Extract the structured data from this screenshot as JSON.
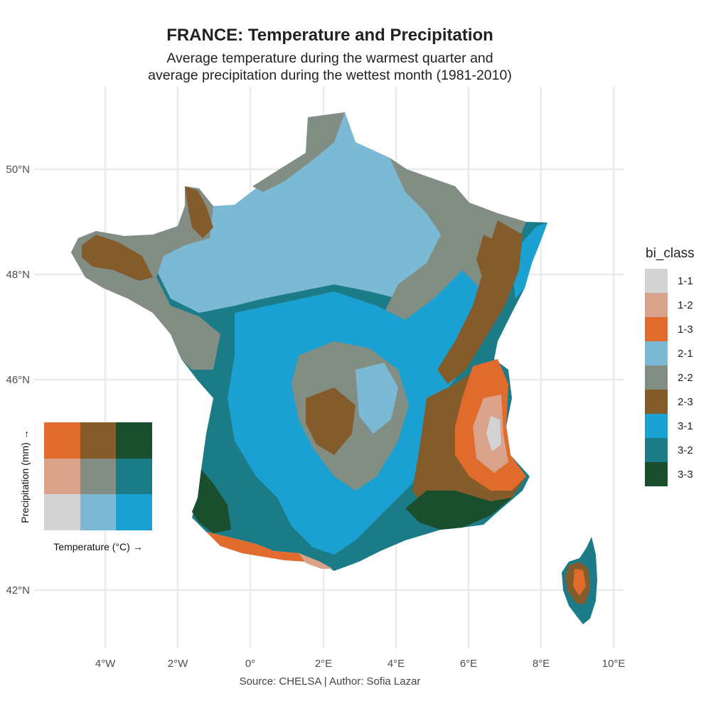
{
  "title": "FRANCE: Temperature and Precipitation",
  "subtitle": {
    "line1": "Average temperature during the warmest quarter and",
    "line2": "average precipitation during the wettest month (1981-2010)"
  },
  "caption": "Source: CHELSA | Author: Sofia Lazar",
  "axes": {
    "x_ticks": [
      "4°W",
      "2°W",
      "0°",
      "2°E",
      "4°E",
      "6°E",
      "8°E",
      "10°E"
    ],
    "y_ticks": [
      "50°N",
      "48°N",
      "46°N",
      "42°N"
    ]
  },
  "legend": {
    "title": "bi_class",
    "items": [
      {
        "label": "1-1",
        "color": "#d3d3d3"
      },
      {
        "label": "1-2",
        "color": "#d9a28a"
      },
      {
        "label": "1-3",
        "color": "#e06b2c"
      },
      {
        "label": "2-1",
        "color": "#7cb9d4"
      },
      {
        "label": "2-2",
        "color": "#828d84"
      },
      {
        "label": "2-3",
        "color": "#845c2b"
      },
      {
        "label": "3-1",
        "color": "#1aa1d1"
      },
      {
        "label": "3-2",
        "color": "#1b7c87"
      },
      {
        "label": "3-3",
        "color": "#1a4f2d"
      }
    ]
  },
  "bivariate_key": {
    "x_label": "Temperature (°C) →",
    "y_label": "Precipitation (mm) →",
    "rows": [
      [
        "#e06b2c",
        "#845c2b",
        "#1a4f2d"
      ],
      [
        "#d9a28a",
        "#828d84",
        "#1b7c87"
      ],
      [
        "#d3d3d3",
        "#7cb9d4",
        "#1aa1d1"
      ]
    ]
  },
  "map": {
    "gridline_color": "#ebebeb"
  }
}
